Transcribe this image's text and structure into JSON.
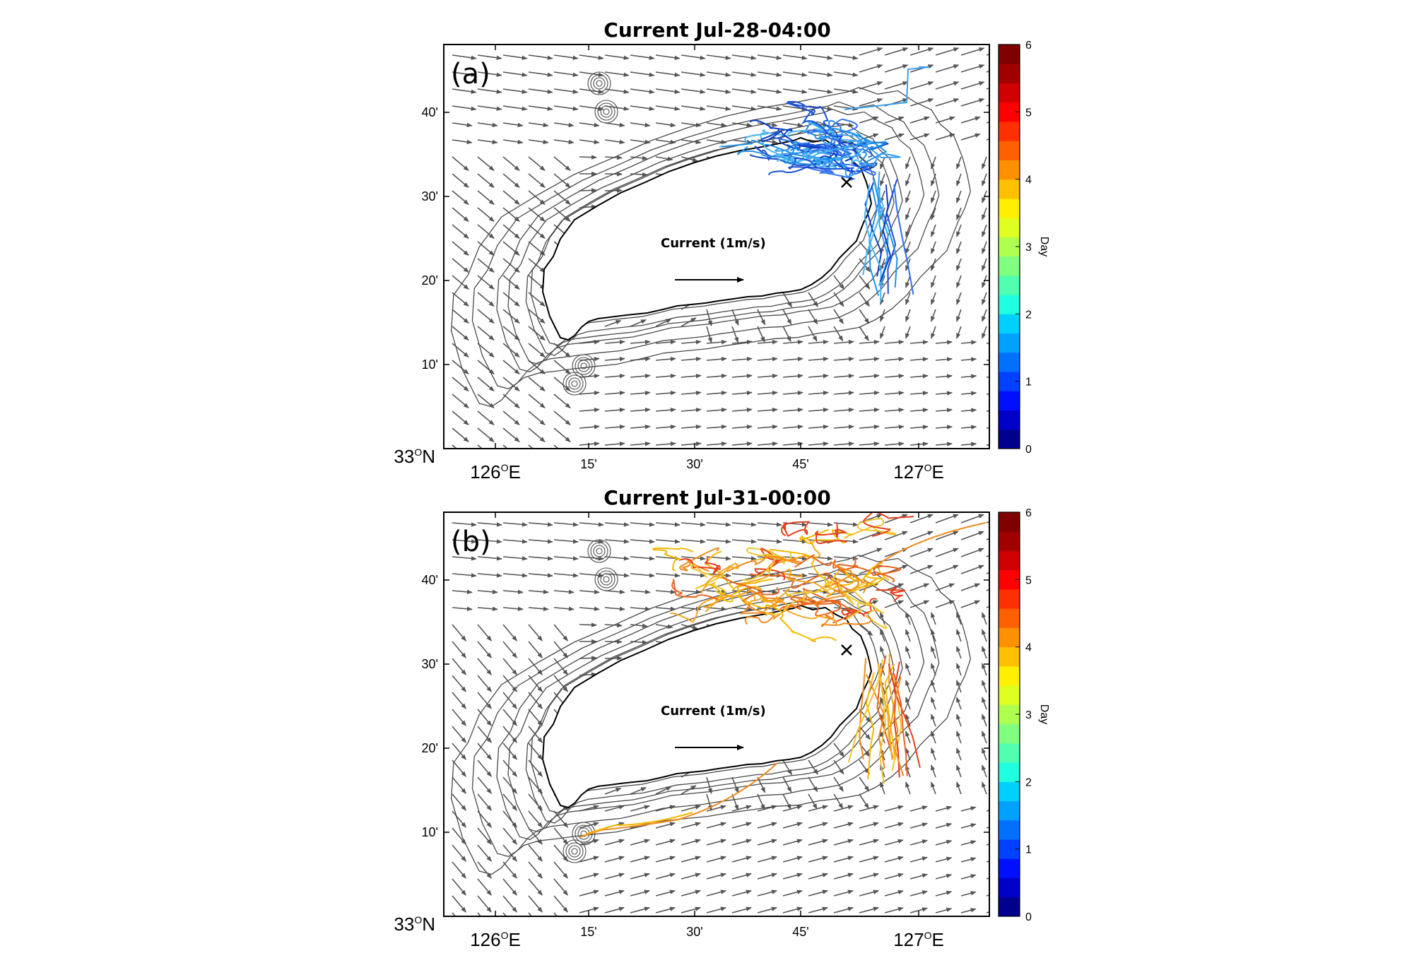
{
  "panels": [
    {
      "label": "(a)",
      "title": "Current Jul-28-04:00",
      "legend_text": "Current (1m/s)",
      "y_ticks": [
        "40'",
        "30'",
        "20'",
        "10'"
      ],
      "y_origin": "33",
      "y_origin_suffix": "N",
      "x_ticks": [
        "15'",
        "30'",
        "45'"
      ],
      "x_major": [
        "126",
        "127"
      ],
      "x_major_suffix": "E",
      "degree_sup": "O",
      "track_palette": [
        "#1a4fd6",
        "#2f6ff0",
        "#1e90e8",
        "#3aa0f0",
        "#0b3fc0",
        "#49b6f5"
      ]
    },
    {
      "label": "(b)",
      "title": "Current Jul-31-00:00",
      "legend_text": "Current (1m/s)",
      "y_ticks": [
        "40'",
        "30'",
        "20'",
        "10'"
      ],
      "y_origin": "33",
      "y_origin_suffix": "N",
      "x_ticks": [
        "15'",
        "30'",
        "45'"
      ],
      "x_major": [
        "126",
        "127"
      ],
      "x_major_suffix": "E",
      "degree_sup": "O",
      "track_palette": [
        "#f5b800",
        "#f08a1c",
        "#f2c430",
        "#e8641e",
        "#f7a41a",
        "#e63e1c"
      ]
    }
  ],
  "colorbar": {
    "label": "Day",
    "ticks": [
      "0",
      "1",
      "2",
      "3",
      "4",
      "5",
      "6"
    ],
    "colors": [
      "#00008f",
      "#0000c8",
      "#0010ff",
      "#0040ff",
      "#0070ff",
      "#00a0ff",
      "#00d0ff",
      "#20ffdf",
      "#50ffaf",
      "#80ff80",
      "#afff50",
      "#dfff20",
      "#ffef00",
      "#ffc000",
      "#ff9000",
      "#ff6000",
      "#ff3000",
      "#ff0000",
      "#d00000",
      "#a00000",
      "#800000"
    ]
  }
}
